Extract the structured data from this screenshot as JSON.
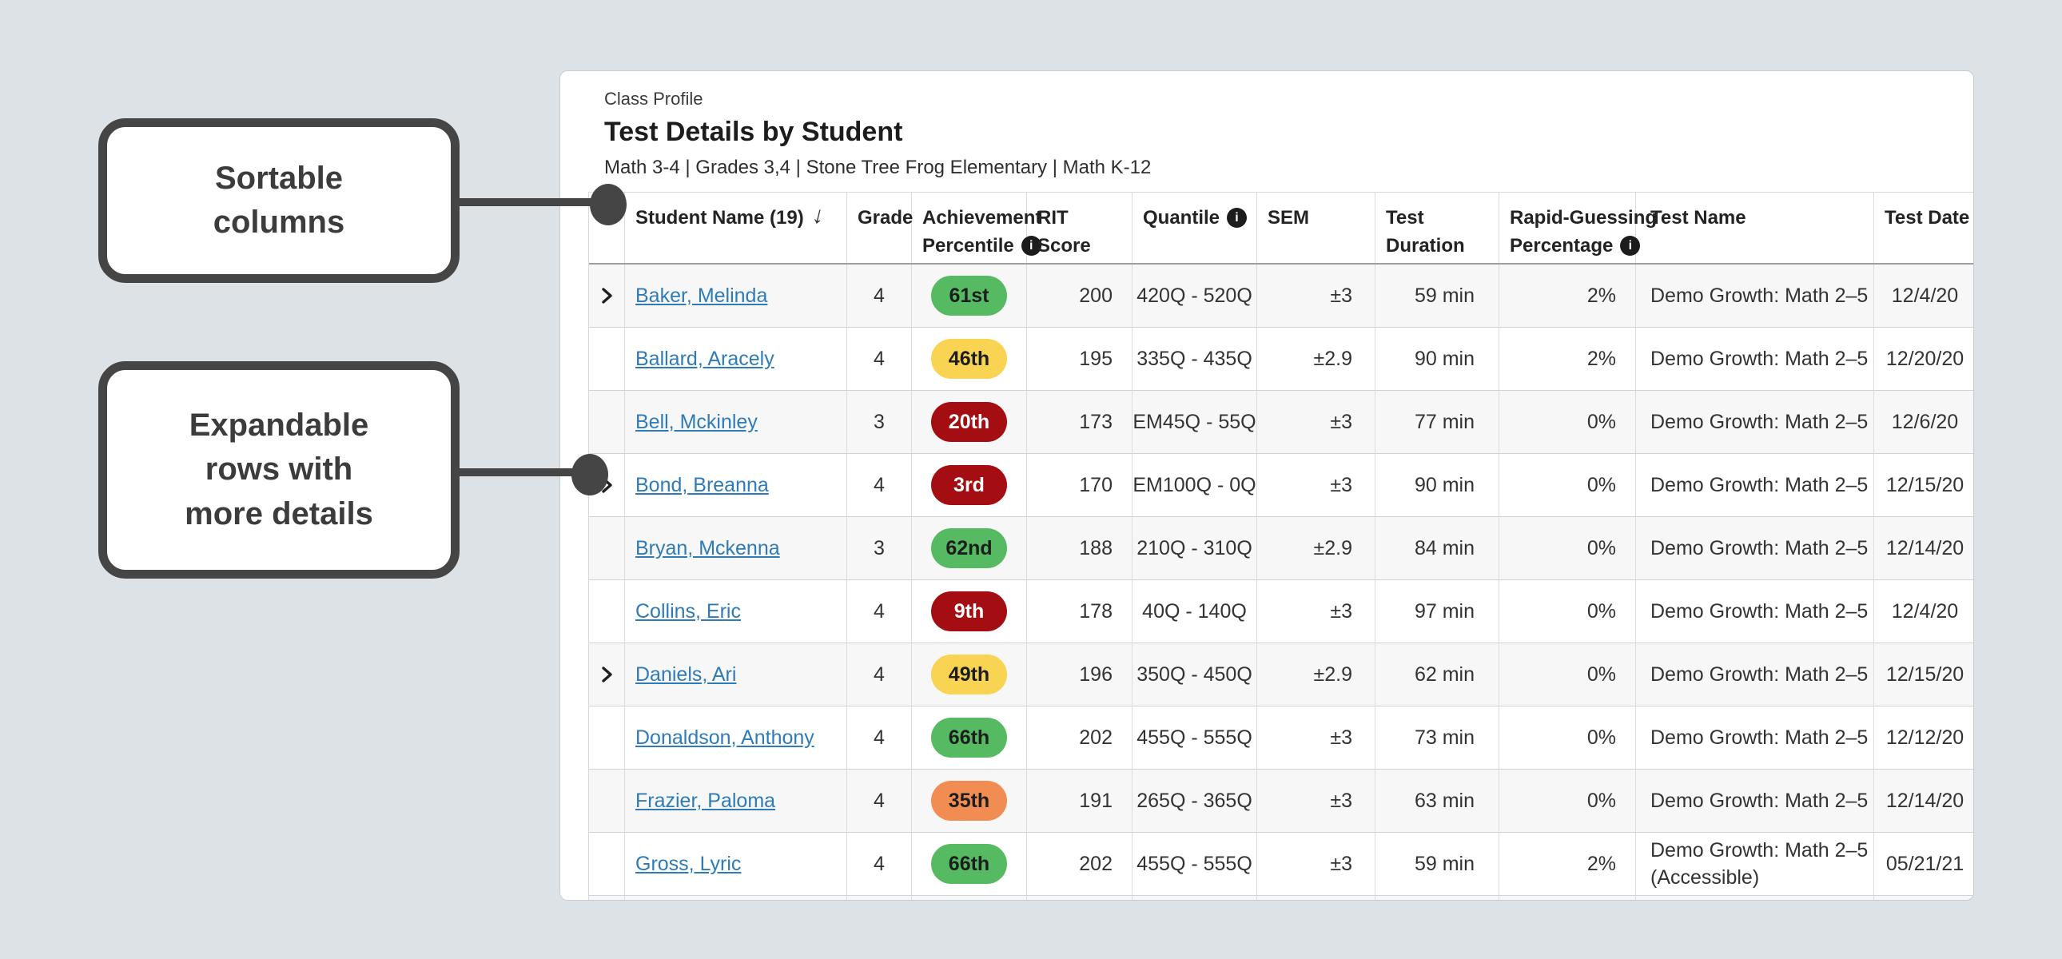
{
  "page": {
    "background": "#dce2e6"
  },
  "callouts": [
    {
      "id": "sortable-columns",
      "text_lines": [
        "Sortable",
        "columns"
      ]
    },
    {
      "id": "expandable-rows",
      "text_lines": [
        "Expandable",
        "rows with",
        "more details"
      ]
    }
  ],
  "card": {
    "eyebrow": "Class Profile",
    "title": "Test Details by Student",
    "subtitle": "Math 3-4 | Grades 3,4 | Stone Tree Frog Elementary | Math K-12"
  },
  "table": {
    "info_glyph": "i",
    "columns": [
      {
        "id": "expand",
        "lines": []
      },
      {
        "id": "student-name",
        "lines": [
          "Student Name (19)"
        ],
        "sort_arrow": "↓"
      },
      {
        "id": "grade",
        "lines": [
          "Grade"
        ]
      },
      {
        "id": "achievement-percentile",
        "lines": [
          "Achievement",
          "Percentile"
        ],
        "info_line": 1
      },
      {
        "id": "rit-score",
        "lines": [
          "RIT",
          "Score"
        ]
      },
      {
        "id": "quantile",
        "lines": [
          "Quantile"
        ],
        "info_line": 0
      },
      {
        "id": "sem",
        "lines": [
          "SEM"
        ]
      },
      {
        "id": "test-duration",
        "lines": [
          "Test",
          "Duration"
        ]
      },
      {
        "id": "rapid-guessing-percentage",
        "lines": [
          "Rapid-Guessing",
          "Percentage"
        ],
        "info_line": 1
      },
      {
        "id": "test-name",
        "lines": [
          "Test Name"
        ]
      },
      {
        "id": "test-date",
        "lines": [
          "Test Date"
        ]
      }
    ],
    "badge_colors": {
      "green": "#56ba63",
      "yellow": "#f9d452",
      "orange": "#f18c52",
      "red": "#a40e13"
    },
    "rows": [
      {
        "expandable": true,
        "name": "Baker, Melinda",
        "grade": "4",
        "percentile": "61st",
        "percentile_color": "green",
        "rit": "200",
        "quantile": "420Q - 520Q",
        "sem": "±3",
        "duration": "59 min",
        "rapid": "2%",
        "test_name": "Demo Growth: Math 2–5",
        "test_date": "12/4/20"
      },
      {
        "expandable": false,
        "name": "Ballard, Aracely",
        "grade": "4",
        "percentile": "46th",
        "percentile_color": "yellow",
        "rit": "195",
        "quantile": "335Q - 435Q",
        "sem": "±2.9",
        "duration": "90 min",
        "rapid": "2%",
        "test_name": "Demo Growth: Math 2–5",
        "test_date": "12/20/20"
      },
      {
        "expandable": false,
        "name": "Bell, Mckinley",
        "grade": "3",
        "percentile": "20th",
        "percentile_color": "red",
        "rit": "173",
        "quantile": "EM45Q - 55Q",
        "sem": "±3",
        "duration": "77 min",
        "rapid": "0%",
        "test_name": "Demo Growth: Math 2–5",
        "test_date": "12/6/20"
      },
      {
        "expandable": true,
        "name": "Bond, Breanna",
        "grade": "4",
        "percentile": "3rd",
        "percentile_color": "red",
        "rit": "170",
        "quantile": "EM100Q - 0Q",
        "sem": "±3",
        "duration": "90 min",
        "rapid": "0%",
        "test_name": "Demo Growth: Math 2–5",
        "test_date": "12/15/20"
      },
      {
        "expandable": false,
        "name": "Bryan, Mckenna",
        "grade": "3",
        "percentile": "62nd",
        "percentile_color": "green",
        "rit": "188",
        "quantile": "210Q - 310Q",
        "sem": "±2.9",
        "duration": "84 min",
        "rapid": "0%",
        "test_name": "Demo Growth: Math 2–5",
        "test_date": "12/14/20"
      },
      {
        "expandable": false,
        "name": "Collins, Eric",
        "grade": "4",
        "percentile": "9th",
        "percentile_color": "red",
        "rit": "178",
        "quantile": "40Q - 140Q",
        "sem": "±3",
        "duration": "97 min",
        "rapid": "0%",
        "test_name": "Demo Growth: Math 2–5",
        "test_date": "12/4/20"
      },
      {
        "expandable": true,
        "name": "Daniels, Ari",
        "grade": "4",
        "percentile": "49th",
        "percentile_color": "yellow",
        "rit": "196",
        "quantile": "350Q - 450Q",
        "sem": "±2.9",
        "duration": "62 min",
        "rapid": "0%",
        "test_name": "Demo Growth: Math 2–5",
        "test_date": "12/15/20"
      },
      {
        "expandable": false,
        "name": "Donaldson, Anthony",
        "grade": "4",
        "percentile": "66th",
        "percentile_color": "green",
        "rit": "202",
        "quantile": "455Q - 555Q",
        "sem": "±3",
        "duration": "73 min",
        "rapid": "0%",
        "test_name": "Demo Growth: Math 2–5",
        "test_date": "12/12/20"
      },
      {
        "expandable": false,
        "name": "Frazier, Paloma",
        "grade": "4",
        "percentile": "35th",
        "percentile_color": "orange",
        "rit": "191",
        "quantile": "265Q - 365Q",
        "sem": "±3",
        "duration": "63 min",
        "rapid": "0%",
        "test_name": "Demo Growth: Math 2–5",
        "test_date": "12/14/20"
      },
      {
        "expandable": false,
        "name": "Gross, Lyric",
        "grade": "4",
        "percentile": "66th",
        "percentile_color": "green",
        "rit": "202",
        "quantile": "455Q - 555Q",
        "sem": "±3",
        "duration": "59 min",
        "rapid": "2%",
        "test_name": "Demo Growth: Math 2–5 (Accessible)",
        "test_date": "05/21/21"
      }
    ]
  }
}
